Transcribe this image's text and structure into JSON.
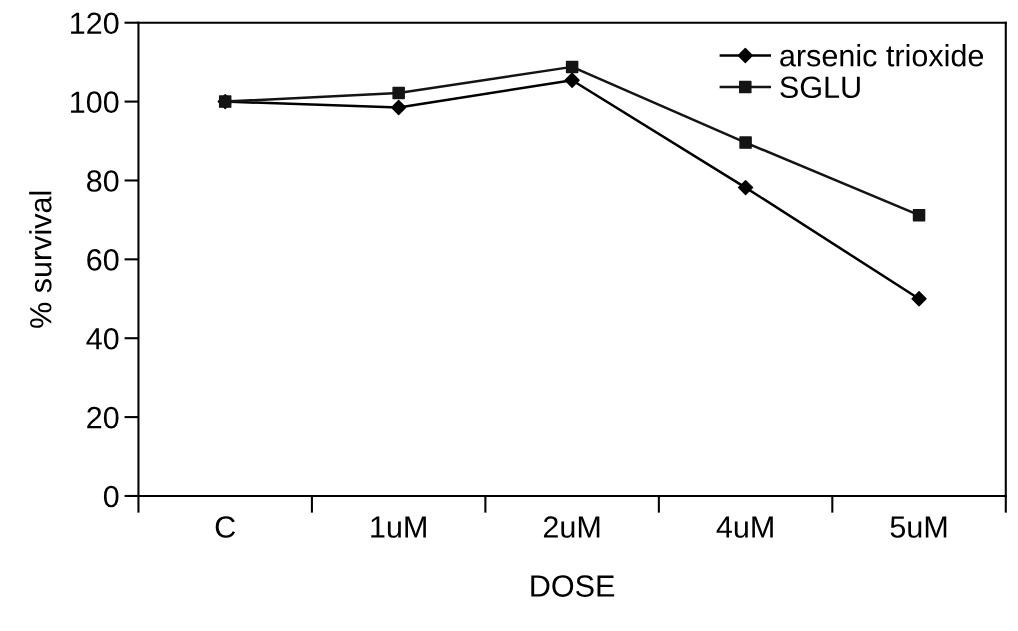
{
  "chart_data": {
    "type": "line",
    "xlabel": "DOSE",
    "ylabel": "% survival",
    "categories": [
      "C",
      "1uM",
      "2uM",
      "4uM",
      "5uM"
    ],
    "series": [
      {
        "name": "arsenic trioxide",
        "color": "#000000",
        "marker": "diamond",
        "values": [
          100,
          98.5,
          105.4,
          78.2,
          50.0
        ]
      },
      {
        "name": "SGLU",
        "color": "#141414",
        "marker": "square",
        "values": [
          100,
          102.2,
          108.8,
          89.6,
          71.2
        ]
      }
    ],
    "ylim": [
      0,
      120
    ],
    "yticks": [
      0,
      20,
      40,
      60,
      80,
      100,
      120
    ],
    "grid": false,
    "legend": "top right",
    "line_style": "solid"
  }
}
